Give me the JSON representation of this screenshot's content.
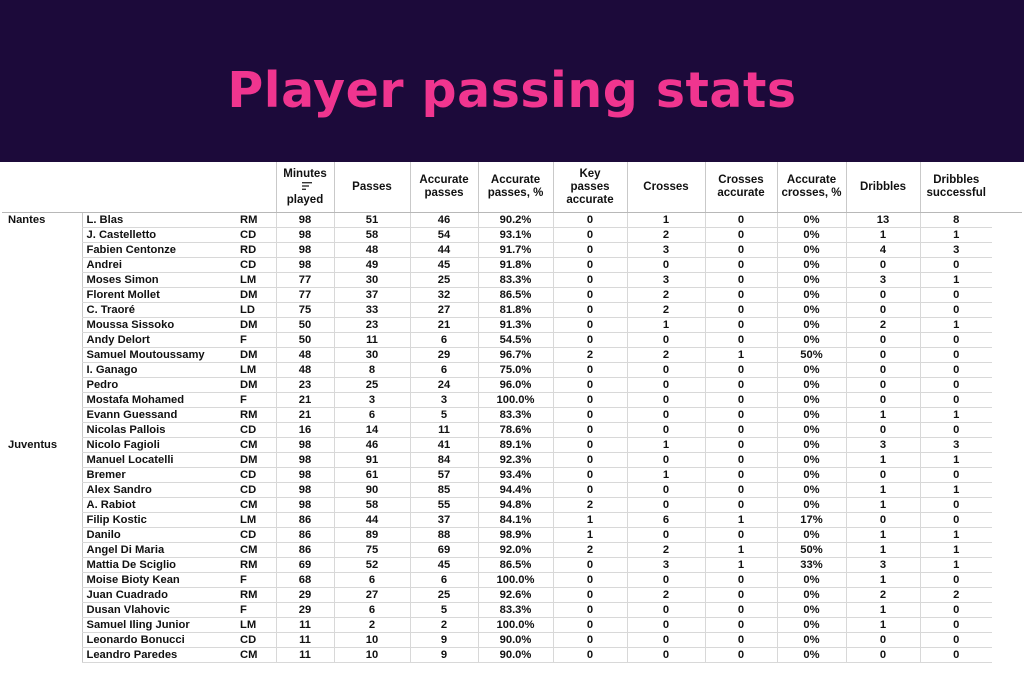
{
  "title": "Player passing stats",
  "columns": [
    "Minutes played",
    "Passes",
    "Accurate passes",
    "Accurate passes, %",
    "Key passes accurate",
    "Crosses",
    "Crosses accurate",
    "Accurate crosses, %",
    "Dribbles",
    "Dribbles successful"
  ],
  "column_lines": [
    [
      "Minutes",
      "played"
    ],
    [
      "Passes"
    ],
    [
      "Accurate",
      "passes"
    ],
    [
      "Accurate",
      "passes, %"
    ],
    [
      "Key",
      "passes",
      "accurate"
    ],
    [
      "Crosses"
    ],
    [
      "Crosses",
      "accurate"
    ],
    [
      "Accurate",
      "crosses, %"
    ],
    [
      "Dribbles"
    ],
    [
      "Dribbles",
      "successful"
    ]
  ],
  "teams": [
    {
      "name": "Nantes",
      "players": [
        {
          "name": "L. Blas",
          "pos": "RM",
          "stats": [
            "98",
            "51",
            "46",
            "90.2%",
            "0",
            "1",
            "0",
            "0%",
            "13",
            "8"
          ]
        },
        {
          "name": "J. Castelletto",
          "pos": "CD",
          "stats": [
            "98",
            "58",
            "54",
            "93.1%",
            "0",
            "2",
            "0",
            "0%",
            "1",
            "1"
          ]
        },
        {
          "name": "Fabien Centonze",
          "pos": "RD",
          "stats": [
            "98",
            "48",
            "44",
            "91.7%",
            "0",
            "3",
            "0",
            "0%",
            "4",
            "3"
          ]
        },
        {
          "name": "Andrei",
          "pos": "CD",
          "stats": [
            "98",
            "49",
            "45",
            "91.8%",
            "0",
            "0",
            "0",
            "0%",
            "0",
            "0"
          ]
        },
        {
          "name": "Moses Simon",
          "pos": "LM",
          "stats": [
            "77",
            "30",
            "25",
            "83.3%",
            "0",
            "3",
            "0",
            "0%",
            "3",
            "1"
          ]
        },
        {
          "name": "Florent Mollet",
          "pos": "DM",
          "stats": [
            "77",
            "37",
            "32",
            "86.5%",
            "0",
            "2",
            "0",
            "0%",
            "0",
            "0"
          ]
        },
        {
          "name": "C. Traoré",
          "pos": "LD",
          "stats": [
            "75",
            "33",
            "27",
            "81.8%",
            "0",
            "2",
            "0",
            "0%",
            "0",
            "0"
          ]
        },
        {
          "name": "Moussa Sissoko",
          "pos": "DM",
          "stats": [
            "50",
            "23",
            "21",
            "91.3%",
            "0",
            "1",
            "0",
            "0%",
            "2",
            "1"
          ]
        },
        {
          "name": "Andy Delort",
          "pos": "F",
          "stats": [
            "50",
            "11",
            "6",
            "54.5%",
            "0",
            "0",
            "0",
            "0%",
            "0",
            "0"
          ]
        },
        {
          "name": "Samuel Moutoussamy",
          "pos": "DM",
          "stats": [
            "48",
            "30",
            "29",
            "96.7%",
            "2",
            "2",
            "1",
            "50%",
            "0",
            "0"
          ]
        },
        {
          "name": "I. Ganago",
          "pos": "LM",
          "stats": [
            "48",
            "8",
            "6",
            "75.0%",
            "0",
            "0",
            "0",
            "0%",
            "0",
            "0"
          ]
        },
        {
          "name": "Pedro",
          "pos": "DM",
          "stats": [
            "23",
            "25",
            "24",
            "96.0%",
            "0",
            "0",
            "0",
            "0%",
            "0",
            "0"
          ]
        },
        {
          "name": "Mostafa Mohamed",
          "pos": "F",
          "stats": [
            "21",
            "3",
            "3",
            "100.0%",
            "0",
            "0",
            "0",
            "0%",
            "0",
            "0"
          ]
        },
        {
          "name": "Evann Guessand",
          "pos": "RM",
          "stats": [
            "21",
            "6",
            "5",
            "83.3%",
            "0",
            "0",
            "0",
            "0%",
            "1",
            "1"
          ]
        },
        {
          "name": "Nicolas Pallois",
          "pos": "CD",
          "stats": [
            "16",
            "14",
            "11",
            "78.6%",
            "0",
            "0",
            "0",
            "0%",
            "0",
            "0"
          ]
        }
      ]
    },
    {
      "name": "Juventus",
      "players": [
        {
          "name": "Nicolo Fagioli",
          "pos": "CM",
          "stats": [
            "98",
            "46",
            "41",
            "89.1%",
            "0",
            "1",
            "0",
            "0%",
            "3",
            "3"
          ]
        },
        {
          "name": "Manuel Locatelli",
          "pos": "DM",
          "stats": [
            "98",
            "91",
            "84",
            "92.3%",
            "0",
            "0",
            "0",
            "0%",
            "1",
            "1"
          ]
        },
        {
          "name": "Bremer",
          "pos": "CD",
          "stats": [
            "98",
            "61",
            "57",
            "93.4%",
            "0",
            "1",
            "0",
            "0%",
            "0",
            "0"
          ]
        },
        {
          "name": "Alex Sandro",
          "pos": "CD",
          "stats": [
            "98",
            "90",
            "85",
            "94.4%",
            "0",
            "0",
            "0",
            "0%",
            "1",
            "1"
          ]
        },
        {
          "name": "A. Rabiot",
          "pos": "CM",
          "stats": [
            "98",
            "58",
            "55",
            "94.8%",
            "2",
            "0",
            "0",
            "0%",
            "1",
            "0"
          ]
        },
        {
          "name": "Filip Kostic",
          "pos": "LM",
          "stats": [
            "86",
            "44",
            "37",
            "84.1%",
            "1",
            "6",
            "1",
            "17%",
            "0",
            "0"
          ]
        },
        {
          "name": "Danilo",
          "pos": "CD",
          "stats": [
            "86",
            "89",
            "88",
            "98.9%",
            "1",
            "0",
            "0",
            "0%",
            "1",
            "1"
          ]
        },
        {
          "name": "Angel Di Maria",
          "pos": "CM",
          "stats": [
            "86",
            "75",
            "69",
            "92.0%",
            "2",
            "2",
            "1",
            "50%",
            "1",
            "1"
          ]
        },
        {
          "name": "Mattia De Sciglio",
          "pos": "RM",
          "stats": [
            "69",
            "52",
            "45",
            "86.5%",
            "0",
            "3",
            "1",
            "33%",
            "3",
            "1"
          ]
        },
        {
          "name": "Moise Bioty Kean",
          "pos": "F",
          "stats": [
            "68",
            "6",
            "6",
            "100.0%",
            "0",
            "0",
            "0",
            "0%",
            "1",
            "0"
          ]
        },
        {
          "name": "Juan Cuadrado",
          "pos": "RM",
          "stats": [
            "29",
            "27",
            "25",
            "92.6%",
            "0",
            "2",
            "0",
            "0%",
            "2",
            "2"
          ]
        },
        {
          "name": "Dusan Vlahovic",
          "pos": "F",
          "stats": [
            "29",
            "6",
            "5",
            "83.3%",
            "0",
            "0",
            "0",
            "0%",
            "1",
            "0"
          ]
        },
        {
          "name": "Samuel Iling Junior",
          "pos": "LM",
          "stats": [
            "11",
            "2",
            "2",
            "100.0%",
            "0",
            "0",
            "0",
            "0%",
            "1",
            "0"
          ]
        },
        {
          "name": "Leonardo Bonucci",
          "pos": "CD",
          "stats": [
            "11",
            "10",
            "9",
            "90.0%",
            "0",
            "0",
            "0",
            "0%",
            "0",
            "0"
          ]
        },
        {
          "name": "Leandro Paredes",
          "pos": "CM",
          "stats": [
            "11",
            "10",
            "9",
            "90.0%",
            "0",
            "0",
            "0",
            "0%",
            "0",
            "0"
          ]
        }
      ]
    }
  ],
  "sort_icon": "sort-descending-icon",
  "colors": {
    "banner_bg": "#1c0a3a",
    "title": "#f0358f"
  }
}
